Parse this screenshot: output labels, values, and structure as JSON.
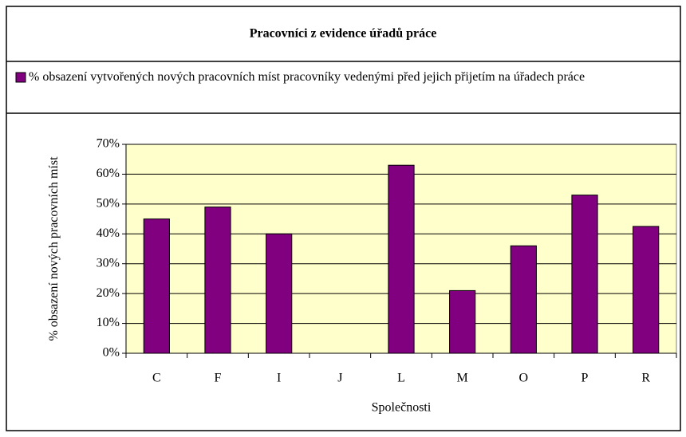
{
  "chart_data": {
    "type": "bar",
    "title": "Pracovníci z evidence úřadů práce",
    "x_label": "Společnosti",
    "y_label": "% obsazení nových pracovních míst",
    "categories": [
      "C",
      "F",
      "I",
      "J",
      "L",
      "M",
      "O",
      "P",
      "R"
    ],
    "series": [
      {
        "name": "% obsazení vytvořených nových pracovních míst pracovníky  vedenými před jejich přijetím na úřadech práce",
        "color": "#800080",
        "values": [
          45,
          49,
          40,
          0,
          63,
          21,
          36,
          53,
          42.5
        ]
      }
    ],
    "ylim": [
      0,
      70
    ],
    "yticks": [
      {
        "value": 0,
        "label": "0%"
      },
      {
        "value": 10,
        "label": "10%"
      },
      {
        "value": 20,
        "label": "20%"
      },
      {
        "value": 30,
        "label": "30%"
      },
      {
        "value": 40,
        "label": "40%"
      },
      {
        "value": 50,
        "label": "50%"
      },
      {
        "value": 60,
        "label": "60%"
      },
      {
        "value": 70,
        "label": "70%"
      }
    ],
    "grid": true,
    "legend": "top",
    "plot_background": "#ffffcc"
  }
}
